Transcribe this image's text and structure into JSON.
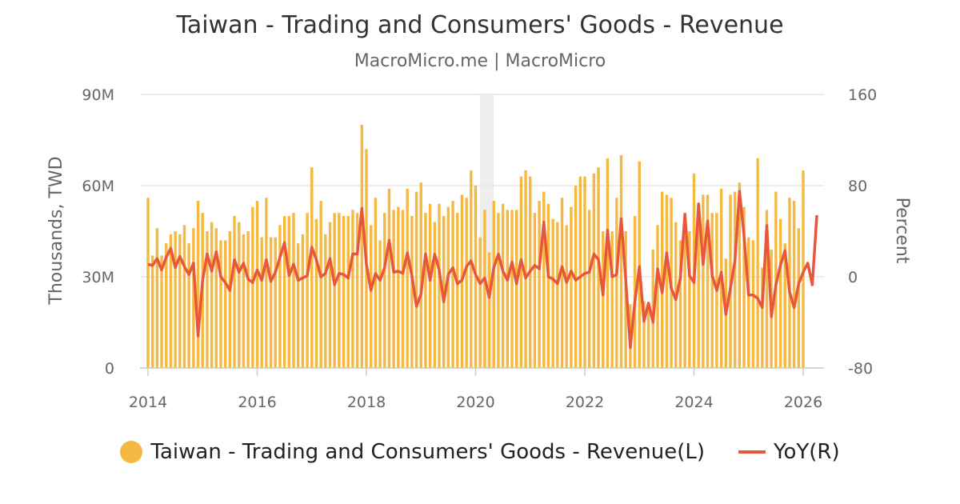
{
  "title": "Taiwan - Trading and Consumers' Goods - Revenue",
  "subtitle": "MacroMicro.me | MacroMicro",
  "colors": {
    "bar": "#f5b942",
    "line": "#e8573c",
    "grid": "#e6e6e6",
    "recession": "#eeeeee"
  },
  "chart_data": {
    "type": "bar+line",
    "x_ticks": [
      "2014",
      "2016",
      "2018",
      "2020",
      "2022",
      "2024",
      "2026"
    ],
    "x_range": [
      2014.0,
      2026.25
    ],
    "yleft": {
      "label": "Thousands, TWD",
      "ticks": [
        "0",
        "30M",
        "60M",
        "90M"
      ],
      "range": [
        0,
        90
      ]
    },
    "yright": {
      "label": "Percent",
      "ticks": [
        "-80",
        "0",
        "80",
        "160"
      ],
      "range": [
        -80,
        160
      ]
    },
    "shaded_period": [
      2020.08,
      2020.33
    ],
    "grid": true,
    "legend_position": "bottom",
    "series": [
      {
        "name": "Taiwan - Trading and Consumers' Goods - Revenue(L)",
        "type": "bar",
        "axis": "left",
        "unit": "millions TWD",
        "start": "2014-01",
        "values": [
          56,
          37,
          46,
          37,
          41,
          44,
          45,
          44,
          47,
          41,
          46,
          55,
          51,
          45,
          48,
          46,
          42,
          42,
          45,
          50,
          48,
          44,
          45,
          53,
          55,
          43,
          56,
          43,
          43,
          47,
          50,
          50,
          51,
          41,
          44,
          51,
          66,
          49,
          55,
          44,
          48,
          51,
          51,
          50,
          50,
          52,
          51,
          80,
          72,
          47,
          56,
          42,
          51,
          59,
          52,
          53,
          52,
          59,
          50,
          58,
          61,
          51,
          54,
          48,
          54,
          50,
          53,
          55,
          51,
          57,
          56,
          65,
          60,
          43,
          52,
          38,
          55,
          51,
          54,
          52,
          52,
          52,
          63,
          65,
          63,
          51,
          55,
          58,
          54,
          49,
          48,
          56,
          47,
          53,
          60,
          63,
          63,
          52,
          64,
          66,
          45,
          69,
          45,
          56,
          70,
          45,
          21,
          50,
          68,
          22,
          21,
          39,
          47,
          58,
          57,
          56,
          48,
          42,
          49,
          45,
          64,
          47,
          57,
          57,
          51,
          51,
          59,
          36,
          57,
          58,
          61,
          53,
          43,
          42,
          69,
          33,
          52,
          39,
          58,
          49,
          41,
          56,
          55,
          46,
          65
        ],
        "color": "#f5b942"
      },
      {
        "name": "YoY(R)",
        "type": "line",
        "axis": "right",
        "unit": "percent",
        "start": "2014-01",
        "values": [
          11,
          10,
          16,
          6,
          17,
          25,
          8,
          18,
          9,
          2,
          12,
          -52,
          -3,
          20,
          5,
          22,
          0,
          -5,
          -12,
          15,
          4,
          12,
          -2,
          -5,
          6,
          -3,
          15,
          -4,
          4,
          17,
          30,
          1,
          11,
          -3,
          -1,
          1,
          26,
          15,
          0,
          3,
          16,
          -7,
          3,
          2,
          -1,
          20,
          20,
          60,
          11,
          -12,
          3,
          -3,
          8,
          32,
          4,
          5,
          3,
          21,
          1,
          -26,
          -15,
          20,
          -3,
          20,
          6,
          -22,
          2,
          8,
          -6,
          -3,
          9,
          14,
          2,
          -6,
          -1,
          -18,
          8,
          20,
          5,
          -3,
          13,
          -6,
          15,
          -1,
          5,
          10,
          7,
          48,
          0,
          -2,
          -6,
          9,
          -5,
          5,
          -3,
          0,
          3,
          4,
          20,
          15,
          -16,
          41,
          0,
          2,
          51,
          -3,
          -62,
          -22,
          9,
          -39,
          -23,
          -40,
          7,
          -14,
          21,
          -10,
          -20,
          -1,
          55,
          1,
          -5,
          64,
          11,
          49,
          1,
          -12,
          4,
          -33,
          -10,
          14,
          75,
          36,
          -16,
          -16,
          -19,
          -27,
          45,
          -35,
          -7,
          10,
          23,
          -13,
          -27,
          -6,
          4,
          12,
          -7,
          54
        ],
        "color": "#e8573c"
      }
    ]
  }
}
